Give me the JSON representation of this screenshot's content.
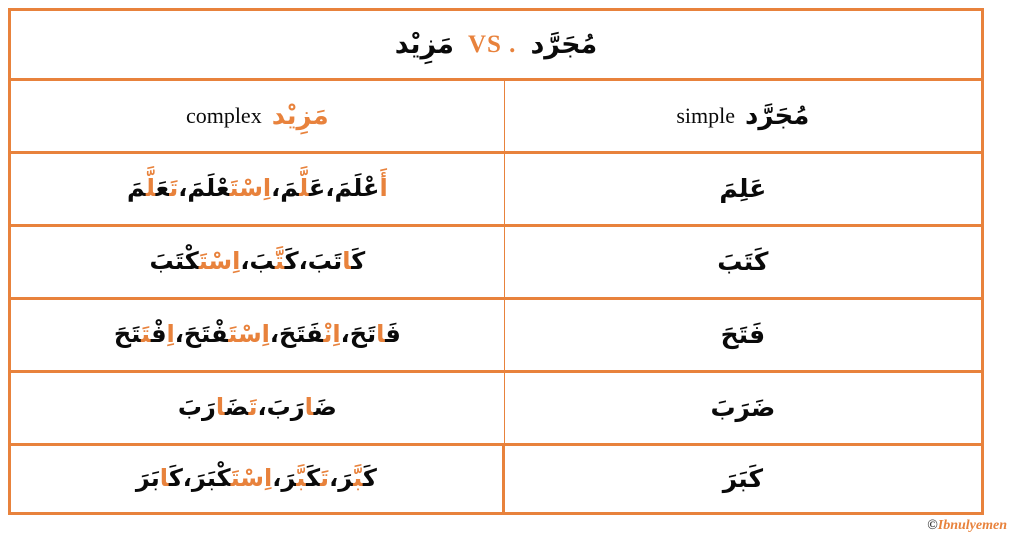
{
  "accent_color": "#E8823C",
  "title": {
    "left_word": "مَزِيْد",
    "vs_label": "VS .",
    "right_word": "مُجَرَّد"
  },
  "header": {
    "complex": {
      "english": "complex",
      "arabic": "مَزِيْد"
    },
    "simple": {
      "english": "simple",
      "arabic": "مُجَرَّد"
    }
  },
  "separator": "،",
  "rows": [
    {
      "complex_words": [
        [
          {
            "t": "أَ",
            "hl": true
          },
          {
            "t": "عْلَمَ",
            "hl": false
          }
        ],
        [
          {
            "t": "عَ",
            "hl": false
          },
          {
            "t": "لَّ",
            "hl": true
          },
          {
            "t": "مَ",
            "hl": false
          }
        ],
        [
          {
            "t": "اِسْتَ",
            "hl": true
          },
          {
            "t": "عْلَمَ",
            "hl": false
          }
        ],
        [
          {
            "t": "تَ",
            "hl": true
          },
          {
            "t": "عَ",
            "hl": false
          },
          {
            "t": "لَّ",
            "hl": true
          },
          {
            "t": "مَ",
            "hl": false
          }
        ]
      ],
      "simple": "عَلِمَ"
    },
    {
      "complex_words": [
        [
          {
            "t": "كَ",
            "hl": false
          },
          {
            "t": "ا",
            "hl": true
          },
          {
            "t": "تَبَ",
            "hl": false
          }
        ],
        [
          {
            "t": "كَ",
            "hl": false
          },
          {
            "t": "تَّ",
            "hl": true
          },
          {
            "t": "بَ",
            "hl": false
          }
        ],
        [
          {
            "t": "اِسْتَ",
            "hl": true
          },
          {
            "t": "كْتَبَ",
            "hl": false
          }
        ]
      ],
      "simple": "كَتَبَ"
    },
    {
      "complex_words": [
        [
          {
            "t": "فَ",
            "hl": false
          },
          {
            "t": "ا",
            "hl": true
          },
          {
            "t": "تَحَ",
            "hl": false
          }
        ],
        [
          {
            "t": "اِنْ",
            "hl": true
          },
          {
            "t": "فَتَحَ",
            "hl": false
          }
        ],
        [
          {
            "t": "اِسْتَ",
            "hl": true
          },
          {
            "t": "فْتَحَ",
            "hl": false
          }
        ],
        [
          {
            "t": "اِ",
            "hl": true
          },
          {
            "t": "فْ",
            "hl": false
          },
          {
            "t": "تَ",
            "hl": true
          },
          {
            "t": "تَحَ",
            "hl": false
          }
        ]
      ],
      "simple": "فَتَحَ"
    },
    {
      "complex_words": [
        [
          {
            "t": "ضَ",
            "hl": false
          },
          {
            "t": "ا",
            "hl": true
          },
          {
            "t": "رَبَ",
            "hl": false
          }
        ],
        [
          {
            "t": "تَ",
            "hl": true
          },
          {
            "t": "ضَ",
            "hl": false
          },
          {
            "t": "ا",
            "hl": true
          },
          {
            "t": "رَبَ",
            "hl": false
          }
        ]
      ],
      "simple": "ضَرَبَ"
    },
    {
      "complex_words": [
        [
          {
            "t": "كَ",
            "hl": false
          },
          {
            "t": "بَّ",
            "hl": true
          },
          {
            "t": "رَ",
            "hl": false
          }
        ],
        [
          {
            "t": "تَ",
            "hl": true
          },
          {
            "t": "كَ",
            "hl": false
          },
          {
            "t": "بَّ",
            "hl": true
          },
          {
            "t": "رَ",
            "hl": false
          }
        ],
        [
          {
            "t": "اِسْتَ",
            "hl": true
          },
          {
            "t": "كْبَرَ",
            "hl": false
          }
        ],
        [
          {
            "t": "كَ",
            "hl": false
          },
          {
            "t": "ا",
            "hl": true
          },
          {
            "t": "بَرَ",
            "hl": false
          }
        ]
      ],
      "simple": "كَبَرَ"
    }
  ],
  "footer": {
    "symbol": "©",
    "name": "Ibnulyemen"
  }
}
